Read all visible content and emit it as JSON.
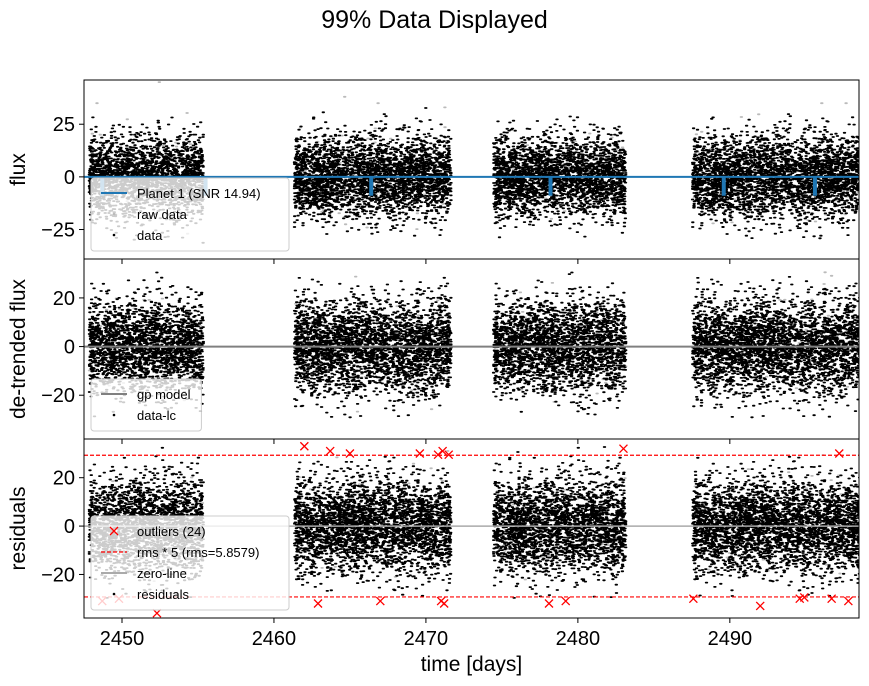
{
  "figure": {
    "title": "99% Data Displayed"
  },
  "chart_data": [
    {
      "type": "scatter",
      "panel": "top",
      "ylabel": "flux",
      "xlim": [
        2447.5,
        2498.5
      ],
      "ylim": [
        -39,
        46
      ],
      "yticks": [
        25,
        0,
        -25
      ],
      "ytick_labels": [
        "25",
        "0",
        "−25"
      ],
      "segments": [
        [
          2447.8,
          2455.3
        ],
        [
          2461.3,
          2471.6
        ],
        [
          2474.4,
          2483.1
        ],
        [
          2487.5,
          2498.5
        ]
      ],
      "scatter_sigma": 9.5,
      "transits": [
        2448.7,
        2455.5,
        2466.4,
        2478.2,
        2489.6,
        2495.6
      ],
      "transit_depth": -8.5,
      "legend": {
        "position": "lower-left",
        "entries": [
          {
            "label": "Planet 1 (SNR 14.94)",
            "style": "line",
            "color": "#1f77b4"
          },
          {
            "label": "raw data",
            "style": "dot",
            "color": "#bbbbbb"
          },
          {
            "label": "data",
            "style": "dot",
            "color": "#000000"
          }
        ]
      }
    },
    {
      "type": "scatter",
      "panel": "middle",
      "ylabel": "de-trended flux",
      "xlim": [
        2447.5,
        2498.5
      ],
      "ylim": [
        -38,
        36
      ],
      "yticks": [
        20,
        0,
        -20
      ],
      "ytick_labels": [
        "20",
        "0",
        "−20"
      ],
      "segments": [
        [
          2447.8,
          2455.3
        ],
        [
          2461.3,
          2471.6
        ],
        [
          2474.4,
          2483.1
        ],
        [
          2487.5,
          2498.5
        ]
      ],
      "scatter_sigma": 9.5,
      "model_value": 0,
      "legend": {
        "position": "lower-left",
        "entries": [
          {
            "label": "gp model",
            "style": "line",
            "color": "#808080"
          },
          {
            "label": "data-lc",
            "style": "dot",
            "color": "#000000"
          }
        ]
      }
    },
    {
      "type": "scatter",
      "panel": "bottom",
      "ylabel": "residuals",
      "xlabel": "time [days]",
      "xlim": [
        2447.5,
        2498.5
      ],
      "ylim": [
        -38,
        36
      ],
      "yticks": [
        20,
        0,
        -20
      ],
      "ytick_labels": [
        "20",
        "0",
        "−20"
      ],
      "xticks": [
        2450,
        2460,
        2470,
        2480,
        2490
      ],
      "xtick_labels": [
        "2450",
        "2460",
        "2470",
        "2480",
        "2490"
      ],
      "segments": [
        [
          2447.8,
          2455.3
        ],
        [
          2461.3,
          2471.6
        ],
        [
          2474.4,
          2483.1
        ],
        [
          2487.5,
          2498.5
        ]
      ],
      "scatter_sigma": 9.5,
      "rms": 5.8579,
      "rms_factor": 5,
      "threshold": 29.29,
      "outliers": [
        {
          "x": 2448.7,
          "y": -31
        },
        {
          "x": 2449.8,
          "y": -30
        },
        {
          "x": 2452.3,
          "y": -36
        },
        {
          "x": 2462.0,
          "y": 33
        },
        {
          "x": 2462.9,
          "y": -32
        },
        {
          "x": 2463.7,
          "y": 31
        },
        {
          "x": 2465.0,
          "y": 30
        },
        {
          "x": 2467.0,
          "y": -31
        },
        {
          "x": 2469.6,
          "y": 30
        },
        {
          "x": 2470.8,
          "y": 29.5
        },
        {
          "x": 2471.0,
          "y": -31
        },
        {
          "x": 2471.1,
          "y": 31
        },
        {
          "x": 2471.2,
          "y": -32
        },
        {
          "x": 2471.5,
          "y": 29.5
        },
        {
          "x": 2478.1,
          "y": -32
        },
        {
          "x": 2479.2,
          "y": -31
        },
        {
          "x": 2483.0,
          "y": 32
        },
        {
          "x": 2487.6,
          "y": -30
        },
        {
          "x": 2492.0,
          "y": -33
        },
        {
          "x": 2494.6,
          "y": -30
        },
        {
          "x": 2494.9,
          "y": -29.5
        },
        {
          "x": 2496.7,
          "y": -30
        },
        {
          "x": 2497.2,
          "y": 30
        },
        {
          "x": 2497.8,
          "y": -31
        }
      ],
      "legend": {
        "position": "lower-left",
        "entries": [
          {
            "label": "outliers (24)",
            "style": "x",
            "color": "#ff0000"
          },
          {
            "label": "rms * 5 (rms=5.8579)",
            "style": "dashed",
            "color": "#ff0000"
          },
          {
            "label": "zero-line",
            "style": "line",
            "color": "#aaaaaa"
          },
          {
            "label": "residuals",
            "style": "dot",
            "color": "#000000"
          }
        ]
      }
    }
  ]
}
